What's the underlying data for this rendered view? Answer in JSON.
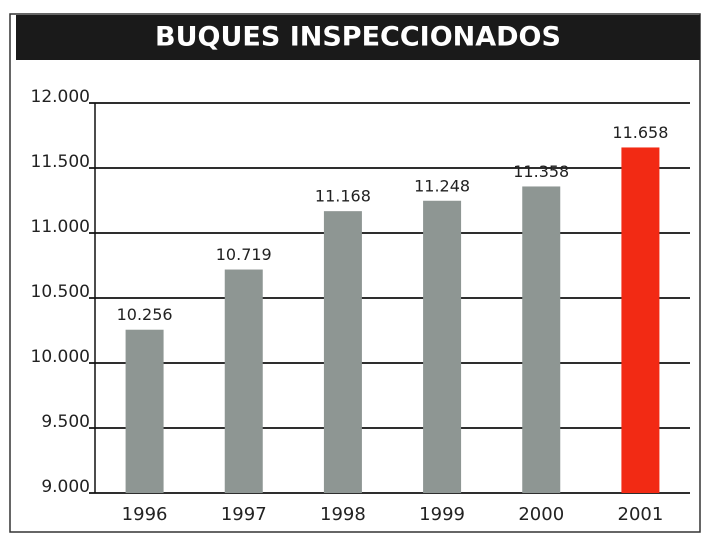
{
  "chart_data": {
    "type": "bar",
    "title": "BUQUES INSPECCIONADOS",
    "categories": [
      "1996",
      "1997",
      "1998",
      "1999",
      "2000",
      "2001"
    ],
    "values": [
      10256,
      10719,
      11168,
      11248,
      11358,
      11658
    ],
    "value_labels": [
      "10.256",
      "10.719",
      "11.168",
      "11.248",
      "11.358",
      "11.658"
    ],
    "colors": [
      "#8e9693",
      "#8e9693",
      "#8e9693",
      "#8e9693",
      "#8e9693",
      "#f22a14"
    ],
    "ylim": [
      9000,
      12000
    ],
    "yticks": [
      {
        "value": 9000,
        "label": "9.000"
      },
      {
        "value": 9500,
        "label": "9.500"
      },
      {
        "value": 10000,
        "label": "10.000"
      },
      {
        "value": 10500,
        "label": "10.500"
      },
      {
        "value": 11000,
        "label": "11.000"
      },
      {
        "value": 11500,
        "label": "11.500"
      },
      {
        "value": 12000,
        "label": "12.000"
      }
    ],
    "grid": true
  }
}
